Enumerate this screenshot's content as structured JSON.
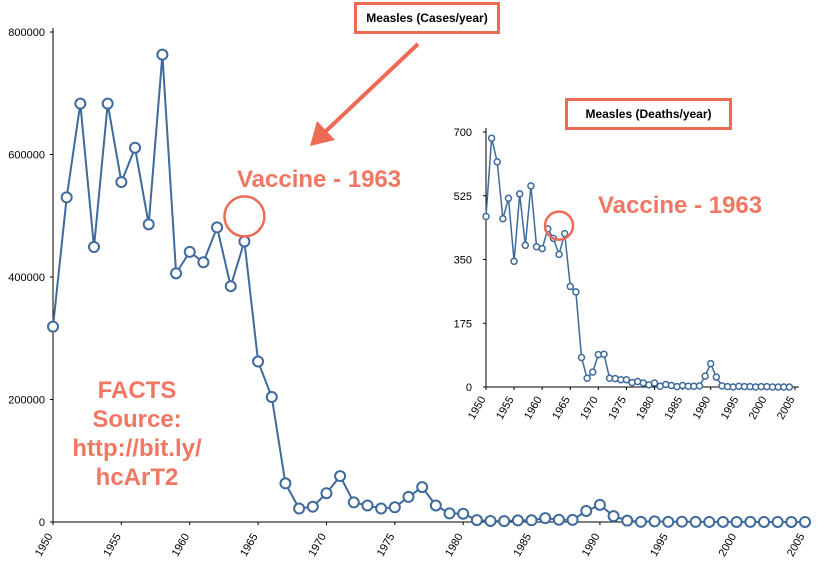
{
  "colors": {
    "series": "#3f6a9c",
    "accent": "#ee6a55",
    "accent_text": "#f07863",
    "axis": "#000000"
  },
  "facts": {
    "lines": [
      "FACTS",
      "Source:",
      "http://bit.ly/",
      "hcArT2"
    ]
  },
  "chart_data": [
    {
      "type": "line",
      "title": "Measles (Cases/year)",
      "annotation": "Vaccine - 1963",
      "annotation_point": {
        "x": 1964,
        "y": 458083
      },
      "ylim": [
        0,
        800000
      ],
      "yticks": [
        0,
        200000,
        400000,
        600000,
        800000
      ],
      "xlim": [
        1950,
        2005
      ],
      "xticks": [
        1950,
        1955,
        1960,
        1965,
        1970,
        1975,
        1980,
        1985,
        1990,
        1995,
        2000,
        2005
      ],
      "grid": false,
      "markers": "hollow circles",
      "x": [
        1950,
        1951,
        1952,
        1953,
        1954,
        1955,
        1956,
        1957,
        1958,
        1959,
        1960,
        1961,
        1962,
        1963,
        1964,
        1965,
        1966,
        1967,
        1968,
        1969,
        1970,
        1971,
        1972,
        1973,
        1974,
        1975,
        1976,
        1977,
        1978,
        1979,
        1980,
        1981,
        1982,
        1983,
        1984,
        1985,
        1986,
        1987,
        1988,
        1989,
        1990,
        1991,
        1992,
        1993,
        1994,
        1995,
        1996,
        1997,
        1998,
        1999,
        2000,
        2001,
        2002,
        2003,
        2004,
        2005
      ],
      "y": [
        319000,
        530000,
        683000,
        449000,
        683000,
        555000,
        611000,
        486000,
        763000,
        406000,
        441000,
        424000,
        481000,
        385000,
        458000,
        262000,
        204000,
        63000,
        22000,
        25000,
        47000,
        75000,
        32000,
        27000,
        22000,
        24000,
        41000,
        57000,
        27000,
        14000,
        13500,
        3100,
        1700,
        1500,
        2600,
        2800,
        6300,
        3700,
        3400,
        18000,
        28000,
        9600,
        2200,
        300,
        960,
        300,
        500,
        140,
        100,
        100,
        86,
        116,
        44,
        56,
        37,
        66
      ]
    },
    {
      "type": "line",
      "title": "Measles (Deaths/year)",
      "annotation": "Vaccine - 1963",
      "annotation_point": {
        "x": 1963,
        "y": 421
      },
      "ylim": [
        0,
        700
      ],
      "yticks": [
        0,
        175,
        350,
        525,
        700
      ],
      "xlim": [
        1950,
        2005
      ],
      "xticks": [
        1950,
        1955,
        1960,
        1965,
        1970,
        1975,
        1980,
        1985,
        1990,
        1995,
        2000,
        2005
      ],
      "grid": false,
      "markers": "hollow circles",
      "x": [
        1950,
        1951,
        1952,
        1953,
        1954,
        1955,
        1956,
        1957,
        1958,
        1959,
        1960,
        1961,
        1962,
        1963,
        1964,
        1965,
        1966,
        1967,
        1968,
        1969,
        1970,
        1971,
        1972,
        1973,
        1974,
        1975,
        1976,
        1977,
        1978,
        1979,
        1980,
        1981,
        1982,
        1983,
        1984,
        1985,
        1986,
        1987,
        1988,
        1989,
        1990,
        1991,
        1992,
        1993,
        1994,
        1995,
        1996,
        1997,
        1998,
        1999,
        2000,
        2001,
        2002,
        2003,
        2004
      ],
      "y": [
        468,
        683,
        618,
        462,
        518,
        345,
        530,
        389,
        552,
        385,
        380,
        434,
        408,
        364,
        421,
        276,
        261,
        81,
        24,
        41,
        89,
        90,
        24,
        23,
        20,
        20,
        12,
        15,
        11,
        6,
        11,
        2,
        7,
        4,
        1,
        4,
        2,
        2,
        3,
        30,
        64,
        27,
        3,
        1,
        0,
        2,
        1,
        1,
        0,
        1,
        1,
        0,
        0,
        0,
        0
      ]
    }
  ]
}
